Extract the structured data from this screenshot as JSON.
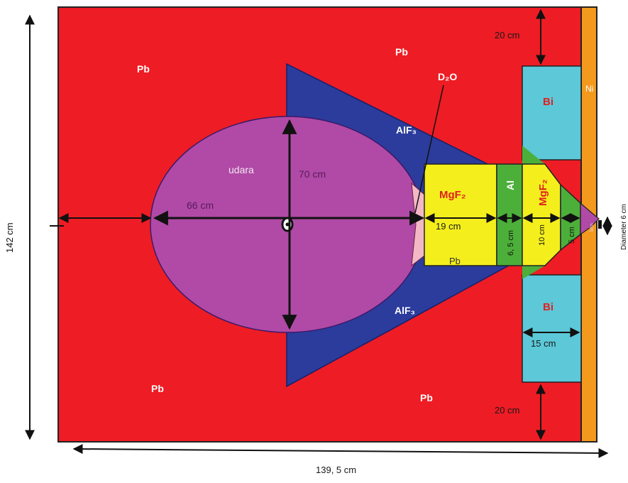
{
  "materials": {
    "pb_top_left": "Pb",
    "pb_top_center": "Pb",
    "pb_bottom_left": "Pb",
    "pb_bottom_center": "Pb",
    "pb_center": "Pb",
    "d2o": "D₂O",
    "alf3_top": "AlF₃",
    "alf3_bottom": "AlF₃",
    "udara": "udara",
    "mgf2_left": "MgF₂",
    "al": "Al",
    "mgf2_right": "MgF₂",
    "bi_top": "Bi",
    "bi_bottom": "Bi",
    "ni": "Ni",
    "small_right": "b/m"
  },
  "dimensions": {
    "d_70": "70 cm",
    "d_66": "66 cm",
    "d_19": "19 cm",
    "d_65": "6, 5 cm",
    "d_10": "10 cm",
    "d_5": "5 cm",
    "d_20_top": "20 cm",
    "d_20_bottom": "20 cm",
    "d_15": "15 cm",
    "d_142": "142 cm",
    "d_1395": "139, 5 cm",
    "d_diameter": "Diameter 6 cm"
  },
  "colors": {
    "pb": "#ee1c24",
    "alf3": "#2b3c9c",
    "udara": "#b04aa6",
    "mgf2": "#f4ef1c",
    "al": "#4caf3a",
    "bi": "#5cc8d8",
    "ni": "#f39a1e",
    "d2o": "#f2b8c6"
  }
}
